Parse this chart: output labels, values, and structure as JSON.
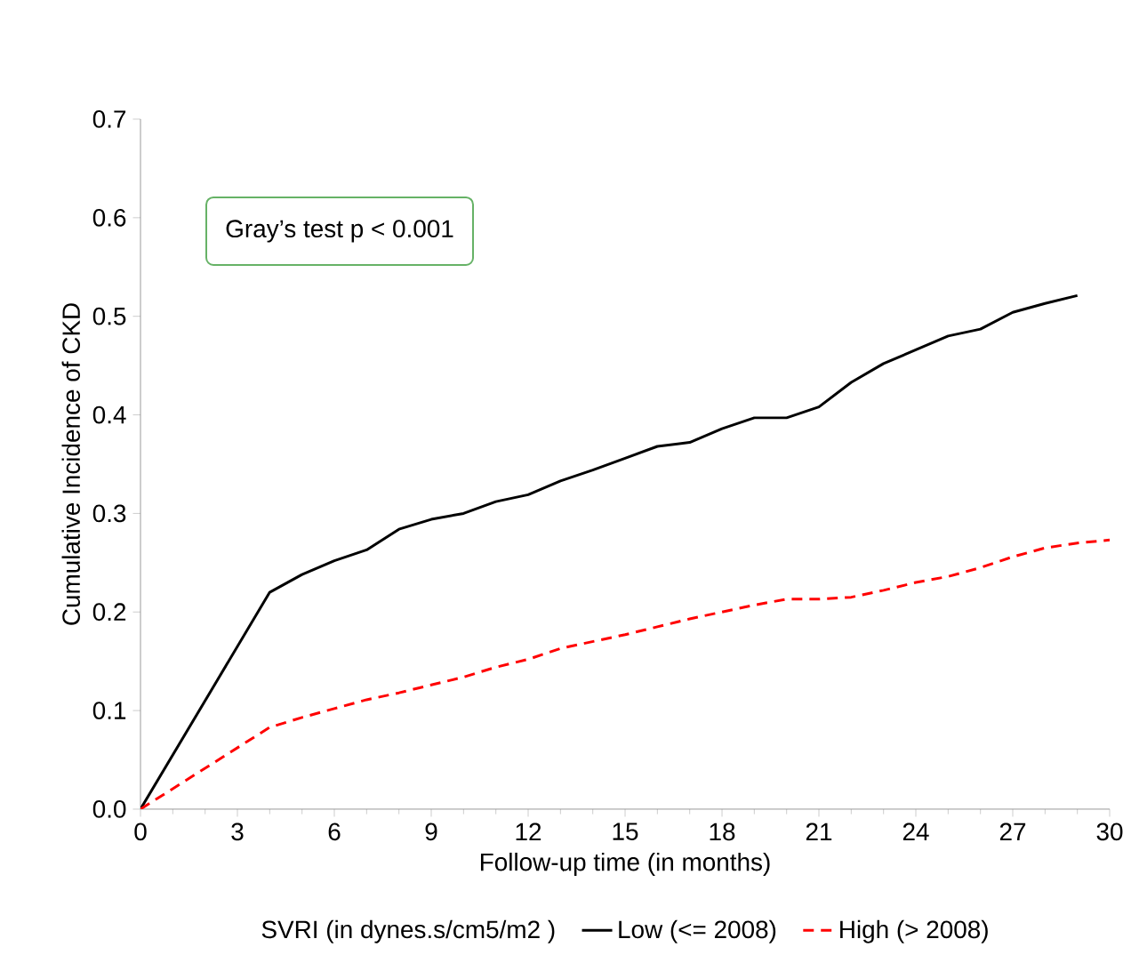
{
  "chart_data": {
    "type": "line",
    "xlabel": "Follow-up time (in months)",
    "ylabel": "Cumulative Incidence of CKD",
    "legend_title": "SVRI (in dynes.s/cm5/m2 )",
    "annotations": [
      "Gray’s test p < 0.001"
    ],
    "x": [
      0,
      4,
      5,
      6,
      7,
      8,
      9,
      10,
      11,
      12,
      13,
      14,
      15,
      16,
      17,
      18,
      19,
      20,
      21,
      22,
      23,
      24,
      25,
      26,
      27,
      28,
      29,
      30
    ],
    "series": [
      {
        "name": "Low (<= 2008)",
        "color": "#000000",
        "line_style": "solid",
        "values": [
          0,
          0.22,
          0.238,
          0.252,
          0.263,
          0.284,
          0.294,
          0.3,
          0.312,
          0.319,
          0.333,
          0.344,
          0.356,
          0.368,
          0.372,
          0.386,
          0.397,
          0.397,
          0.408,
          0.433,
          0.452,
          0.466,
          0.48,
          0.487,
          0.504,
          0.513,
          0.521,
          null
        ]
      },
      {
        "name": "High (> 2008)",
        "color": "#ff0000",
        "line_style": "dashed",
        "values": [
          0,
          0.083,
          0.093,
          0.102,
          0.111,
          0.118,
          0.126,
          0.134,
          0.144,
          0.152,
          0.163,
          0.17,
          0.177,
          0.185,
          0.193,
          0.2,
          0.207,
          0.213,
          0.213,
          0.215,
          0.222,
          0.23,
          0.236,
          0.245,
          0.256,
          0.265,
          0.27,
          0.273
        ]
      }
    ],
    "xlim": [
      0,
      30
    ],
    "xticks": [
      0,
      3,
      6,
      9,
      12,
      15,
      18,
      21,
      24,
      27,
      30
    ],
    "ylim": [
      0,
      0.7
    ],
    "yticks": [
      {
        "value": 0,
        "label": "0.0"
      },
      0.1,
      0.2,
      0.3,
      0.4,
      0.5,
      0.6,
      0.7
    ],
    "legend": "bottom",
    "grid": false,
    "marker": "none"
  }
}
